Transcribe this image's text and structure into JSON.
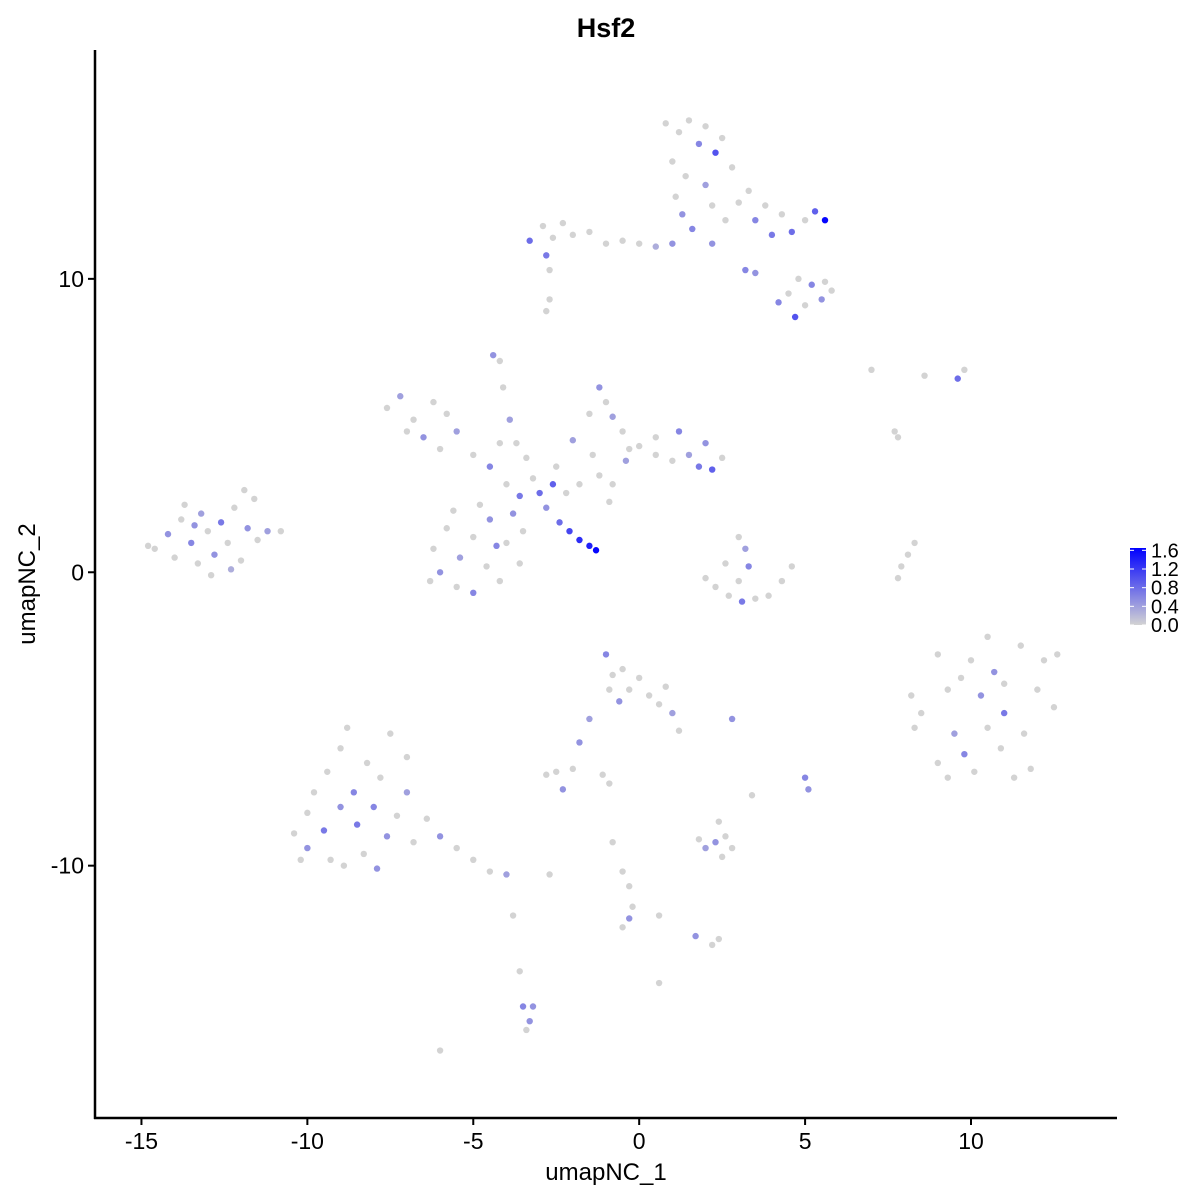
{
  "chart_data": {
    "type": "scatter",
    "title": "Hsf2",
    "xlabel": "umapNC_1",
    "ylabel": "umapNC_2",
    "xlim": [
      -16.4,
      14.4
    ],
    "ylim": [
      -18.6,
      17.8
    ],
    "xticks": [
      -15,
      -10,
      -5,
      0,
      5,
      10
    ],
    "yticks": [
      -10,
      0,
      10
    ],
    "xtick_labels": [
      "-15",
      "-10",
      "-5",
      "0",
      "5",
      "10"
    ],
    "ytick_labels": [
      "-10",
      "0",
      "10"
    ],
    "grid": false,
    "legend": {
      "placement": "right",
      "type": "colorbar",
      "range": [
        0,
        1.65
      ],
      "ticks": [
        1.6,
        1.2,
        0.8,
        0.4,
        0.0
      ],
      "tick_labels": [
        "1.6",
        "1.2",
        "0.8",
        "0.4",
        "0.0"
      ],
      "low_color": "#d3d3d3",
      "high_color": "#0000ff"
    },
    "point_fields": [
      "x",
      "y",
      "expression"
    ],
    "points": [
      [
        -14.6,
        0.8,
        0
      ],
      [
        -14.2,
        1.3,
        0.5
      ],
      [
        -14,
        0.5,
        0
      ],
      [
        -13.8,
        1.8,
        0
      ],
      [
        -13.5,
        1,
        0.6
      ],
      [
        -13.3,
        0.3,
        0
      ],
      [
        -13.2,
        2,
        0.4
      ],
      [
        -13,
        1.4,
        0
      ],
      [
        -12.8,
        0.6,
        0.5
      ],
      [
        -12.6,
        1.7,
        0.7
      ],
      [
        -12.4,
        1,
        0
      ],
      [
        -12.2,
        2.2,
        0
      ],
      [
        -12,
        0.4,
        0
      ],
      [
        -11.8,
        1.5,
        0.5
      ],
      [
        -11.6,
        2.5,
        0
      ],
      [
        -11.5,
        1.1,
        0
      ],
      [
        -11.2,
        1.4,
        0.4
      ],
      [
        -10.8,
        1.4,
        0
      ],
      [
        -12.9,
        -0.1,
        0
      ],
      [
        -13.7,
        2.3,
        0
      ],
      [
        -14.8,
        0.9,
        0
      ],
      [
        -12.3,
        0.1,
        0.3
      ],
      [
        -11.9,
        2.8,
        0
      ],
      [
        -13.4,
        1.6,
        0.5
      ],
      [
        -7.6,
        5.6,
        0
      ],
      [
        -7.2,
        6,
        0.4
      ],
      [
        -6.8,
        5.2,
        0
      ],
      [
        -6.5,
        4.6,
        0.5
      ],
      [
        -7,
        4.8,
        0
      ],
      [
        -6,
        4.2,
        0
      ],
      [
        -5.5,
        4.8,
        0.4
      ],
      [
        -5,
        4,
        0
      ],
      [
        -4.5,
        3.6,
        0.6
      ],
      [
        -6.2,
        5.8,
        0
      ],
      [
        -5.8,
        5.4,
        0
      ],
      [
        -4,
        3,
        0
      ],
      [
        -3.6,
        2.6,
        0.7
      ],
      [
        -3.2,
        3.2,
        0
      ],
      [
        -3,
        2.7,
        0.8
      ],
      [
        -2.6,
        3,
        0.9
      ],
      [
        -2.2,
        2.7,
        0
      ],
      [
        -3.4,
        3.9,
        0
      ],
      [
        -2.8,
        2.2,
        0.5
      ],
      [
        -4.2,
        4.4,
        0
      ],
      [
        -6.2,
        0.8,
        0
      ],
      [
        -6,
        0,
        0.5
      ],
      [
        -5.8,
        1.5,
        0
      ],
      [
        -5.5,
        -0.5,
        0
      ],
      [
        -5.4,
        0.5,
        0.4
      ],
      [
        -5,
        1.2,
        0
      ],
      [
        -5,
        -0.7,
        0.6
      ],
      [
        -4.6,
        0.2,
        0
      ],
      [
        -4.5,
        1.8,
        0.5
      ],
      [
        -4.2,
        -0.3,
        0
      ],
      [
        -4,
        1,
        0
      ],
      [
        -3.8,
        2,
        0.5
      ],
      [
        -3.6,
        0.3,
        0
      ],
      [
        -3.5,
        1.4,
        0
      ],
      [
        -4.8,
        2.3,
        0
      ],
      [
        -5.6,
        2.1,
        0
      ],
      [
        -6.3,
        -0.3,
        0
      ],
      [
        -4.3,
        0.9,
        0.6
      ],
      [
        -2.4,
        1.7,
        0.8
      ],
      [
        -2.1,
        1.4,
        1.1
      ],
      [
        -1.8,
        1.1,
        1.3
      ],
      [
        -1.5,
        0.9,
        1.4
      ],
      [
        -1.3,
        0.75,
        1.6
      ],
      [
        -4.4,
        7.4,
        0.5
      ],
      [
        -4.2,
        7.2,
        0
      ],
      [
        -4.1,
        6.3,
        0
      ],
      [
        -3.9,
        5.2,
        0.4
      ],
      [
        -3.7,
        4.4,
        0
      ],
      [
        -1.2,
        6.3,
        0.5
      ],
      [
        -1,
        5.8,
        0
      ],
      [
        -0.8,
        5.3,
        0.4
      ],
      [
        -0.5,
        4.8,
        0
      ],
      [
        -0.3,
        4.2,
        0
      ],
      [
        -1.5,
        5.4,
        0
      ],
      [
        -2,
        4.5,
        0.4
      ],
      [
        -1.4,
        4,
        0
      ],
      [
        0,
        4.3,
        0
      ],
      [
        0.5,
        4,
        0
      ],
      [
        0.5,
        4.6,
        0
      ],
      [
        1,
        3.8,
        0
      ],
      [
        1.2,
        4.8,
        0.6
      ],
      [
        1.5,
        4,
        0.4
      ],
      [
        1.8,
        3.6,
        0.7
      ],
      [
        2,
        4.4,
        0.5
      ],
      [
        2.2,
        3.5,
        0.9
      ],
      [
        2.5,
        3.9,
        0
      ],
      [
        -0.4,
        3.8,
        0.4
      ],
      [
        -1.2,
        3.3,
        0
      ],
      [
        -0.8,
        3,
        0
      ],
      [
        -2.5,
        3.6,
        0
      ],
      [
        -1.8,
        3,
        0
      ],
      [
        -0.9,
        2.4,
        0
      ],
      [
        -3.3,
        11.3,
        0.8
      ],
      [
        -2.9,
        11.8,
        0
      ],
      [
        -2.6,
        11.4,
        0
      ],
      [
        -2.3,
        11.9,
        0
      ],
      [
        -2.8,
        10.8,
        0.7
      ],
      [
        -2.7,
        10.3,
        0
      ],
      [
        -2,
        11.5,
        0
      ],
      [
        -1.5,
        11.6,
        0
      ],
      [
        -1,
        11.2,
        0
      ],
      [
        -0.5,
        11.3,
        0
      ],
      [
        0,
        11.2,
        0
      ],
      [
        0.5,
        11.1,
        0.3
      ],
      [
        1,
        11.2,
        0.5
      ],
      [
        -2.8,
        8.9,
        0
      ],
      [
        -2.7,
        9.3,
        0
      ],
      [
        0.8,
        15.3,
        0
      ],
      [
        1.2,
        15,
        0
      ],
      [
        1.5,
        15.4,
        0
      ],
      [
        1.8,
        14.6,
        0.6
      ],
      [
        2,
        15.2,
        0
      ],
      [
        2.3,
        14.3,
        1
      ],
      [
        2.5,
        14.8,
        0
      ],
      [
        1,
        14,
        0
      ],
      [
        1.4,
        13.5,
        0
      ],
      [
        2,
        13.2,
        0.4
      ],
      [
        2.8,
        13.8,
        0
      ],
      [
        1.1,
        12.8,
        0
      ],
      [
        1.3,
        12.2,
        0.5
      ],
      [
        1.6,
        11.7,
        0.6
      ],
      [
        2.2,
        12.5,
        0
      ],
      [
        2.6,
        12,
        0
      ],
      [
        2.2,
        11.2,
        0.5
      ],
      [
        3,
        12.6,
        0
      ],
      [
        3.3,
        13,
        0
      ],
      [
        3.5,
        12,
        0.6
      ],
      [
        3.8,
        12.5,
        0
      ],
      [
        4,
        11.5,
        0.7
      ],
      [
        4.3,
        12.2,
        0
      ],
      [
        4.6,
        11.6,
        0.8
      ],
      [
        5,
        12,
        0
      ],
      [
        5.3,
        12.3,
        0.9
      ],
      [
        5.6,
        12,
        1.6
      ],
      [
        3.2,
        10.3,
        0.6
      ],
      [
        3.5,
        10.2,
        0.5
      ],
      [
        4.5,
        9.5,
        0
      ],
      [
        4.8,
        10,
        0
      ],
      [
        4.2,
        9.2,
        0.6
      ],
      [
        4.7,
        8.7,
        1
      ],
      [
        5.2,
        9.8,
        0.6
      ],
      [
        5.5,
        9.3,
        0.5
      ],
      [
        5.8,
        9.6,
        0
      ],
      [
        5,
        9.1,
        0
      ],
      [
        5.6,
        9.9,
        0
      ],
      [
        7,
        6.9,
        0
      ],
      [
        8.6,
        6.7,
        0
      ],
      [
        9.6,
        6.6,
        0.8
      ],
      [
        9.8,
        6.9,
        0
      ],
      [
        7.7,
        4.8,
        0
      ],
      [
        7.8,
        4.6,
        0
      ],
      [
        2,
        -0.2,
        0
      ],
      [
        2.3,
        -0.5,
        0
      ],
      [
        2.7,
        -0.8,
        0
      ],
      [
        3.1,
        -1,
        0.7
      ],
      [
        3.5,
        -0.9,
        0
      ],
      [
        3.9,
        -0.8,
        0
      ],
      [
        4.3,
        -0.3,
        0
      ],
      [
        4.6,
        0.2,
        0
      ],
      [
        3,
        1.2,
        0
      ],
      [
        3.2,
        0.8,
        0.4
      ],
      [
        3.3,
        0.2,
        0.6
      ],
      [
        3,
        -0.3,
        0
      ],
      [
        2.6,
        0.3,
        0
      ],
      [
        7.8,
        -0.2,
        0
      ],
      [
        7.9,
        0.2,
        0
      ],
      [
        8.1,
        0.6,
        0
      ],
      [
        8.3,
        1,
        0
      ],
      [
        8.2,
        -4.2,
        0
      ],
      [
        8.5,
        -4.8,
        0
      ],
      [
        8.3,
        -5.3,
        0
      ],
      [
        9,
        -2.8,
        0
      ],
      [
        9.3,
        -4,
        0
      ],
      [
        9.5,
        -5.5,
        0.4
      ],
      [
        9,
        -6.5,
        0
      ],
      [
        9.3,
        -7,
        0
      ],
      [
        9.8,
        -6.2,
        0.6
      ],
      [
        10,
        -3,
        0
      ],
      [
        10.3,
        -4.2,
        0.5
      ],
      [
        10.5,
        -5.3,
        0
      ],
      [
        10.5,
        -2.2,
        0
      ],
      [
        10.9,
        -6,
        0
      ],
      [
        11,
        -3.8,
        0
      ],
      [
        11,
        -4.8,
        0.7
      ],
      [
        11.5,
        -2.5,
        0
      ],
      [
        11.6,
        -5.5,
        0
      ],
      [
        11.8,
        -6.7,
        0
      ],
      [
        12,
        -4,
        0
      ],
      [
        12.2,
        -3,
        0
      ],
      [
        12.5,
        -4.6,
        0
      ],
      [
        12.6,
        -2.8,
        0
      ],
      [
        10.1,
        -6.8,
        0
      ],
      [
        11.3,
        -7,
        0
      ],
      [
        9.7,
        -3.6,
        0
      ],
      [
        10.7,
        -3.4,
        0.5
      ],
      [
        -10.4,
        -8.9,
        0
      ],
      [
        -10,
        -9.4,
        0.5
      ],
      [
        -10,
        -8.2,
        0
      ],
      [
        -9.8,
        -7.5,
        0
      ],
      [
        -9.5,
        -8.8,
        0.7
      ],
      [
        -9.4,
        -6.8,
        0
      ],
      [
        -9.3,
        -9.8,
        0
      ],
      [
        -9,
        -8,
        0.5
      ],
      [
        -9,
        -6,
        0
      ],
      [
        -8.8,
        -5.3,
        0
      ],
      [
        -8.6,
        -7.5,
        0.6
      ],
      [
        -8.5,
        -8.6,
        0.7
      ],
      [
        -8.3,
        -9.6,
        0
      ],
      [
        -8.2,
        -6.5,
        0
      ],
      [
        -8,
        -8,
        0.6
      ],
      [
        -7.8,
        -7,
        0
      ],
      [
        -7.6,
        -9,
        0.5
      ],
      [
        -7.5,
        -5.5,
        0
      ],
      [
        -7.3,
        -8.3,
        0
      ],
      [
        -7,
        -6.3,
        0
      ],
      [
        -7,
        -7.5,
        0.4
      ],
      [
        -6.8,
        -9.2,
        0
      ],
      [
        -6.4,
        -8.4,
        0
      ],
      [
        -6,
        -9,
        0.5
      ],
      [
        -5.5,
        -9.4,
        0
      ],
      [
        -5,
        -9.8,
        0
      ],
      [
        -4.5,
        -10.2,
        0
      ],
      [
        -4,
        -10.3,
        0.4
      ],
      [
        -7.9,
        -10.1,
        0.5
      ],
      [
        -8.9,
        -10,
        0
      ],
      [
        -10.2,
        -9.8,
        0
      ],
      [
        -1,
        -2.8,
        0.6
      ],
      [
        -0.8,
        -3.5,
        0
      ],
      [
        -0.5,
        -3.3,
        0
      ],
      [
        -0.3,
        -4,
        0
      ],
      [
        0,
        -3.6,
        0
      ],
      [
        0.3,
        -4.2,
        0
      ],
      [
        0.6,
        -4.5,
        0
      ],
      [
        -0.6,
        -4.4,
        0.5
      ],
      [
        -0.9,
        -4,
        0
      ],
      [
        1,
        -4.8,
        0.4
      ],
      [
        1.2,
        -5.4,
        0
      ],
      [
        0.8,
        -3.9,
        0
      ],
      [
        -1.5,
        -5,
        0.4
      ],
      [
        -1.8,
        -5.8,
        0.5
      ],
      [
        -2,
        -6.7,
        0
      ],
      [
        -2.5,
        -6.8,
        0
      ],
      [
        -2.3,
        -7.4,
        0.5
      ],
      [
        -2.8,
        -6.9,
        0
      ],
      [
        -1.1,
        -6.9,
        0
      ],
      [
        -0.9,
        -7.2,
        0
      ],
      [
        2.8,
        -5,
        0.5
      ],
      [
        5,
        -7,
        0.6
      ],
      [
        5.1,
        -7.4,
        0.5
      ],
      [
        3.4,
        -7.6,
        0
      ],
      [
        2.4,
        -8.5,
        0
      ],
      [
        2.3,
        -9.2,
        0.5
      ],
      [
        2.6,
        -9,
        0
      ],
      [
        2,
        -9.4,
        0.4
      ],
      [
        2.8,
        -9.4,
        0
      ],
      [
        1.8,
        -9.1,
        0
      ],
      [
        2.5,
        -9.7,
        0
      ],
      [
        -0.8,
        -9.2,
        0
      ],
      [
        -0.5,
        -10.2,
        0
      ],
      [
        -0.3,
        -10.7,
        0
      ],
      [
        -0.2,
        -11.4,
        0
      ],
      [
        -0.3,
        -11.8,
        0.5
      ],
      [
        -0.5,
        -12.1,
        0
      ],
      [
        0.6,
        -11.7,
        0
      ],
      [
        1.7,
        -12.4,
        0.5
      ],
      [
        2.2,
        -12.7,
        0
      ],
      [
        2.4,
        -12.5,
        0
      ],
      [
        0.6,
        -14,
        0
      ],
      [
        -3.8,
        -11.7,
        0
      ],
      [
        -3.6,
        -13.6,
        0
      ],
      [
        -3.5,
        -14.8,
        0.6
      ],
      [
        -3.3,
        -15.3,
        0.5
      ],
      [
        -3.4,
        -15.6,
        0
      ],
      [
        -3.2,
        -14.8,
        0.5
      ],
      [
        -6,
        -16.3,
        0
      ],
      [
        -2.7,
        -10.3,
        0
      ]
    ]
  }
}
